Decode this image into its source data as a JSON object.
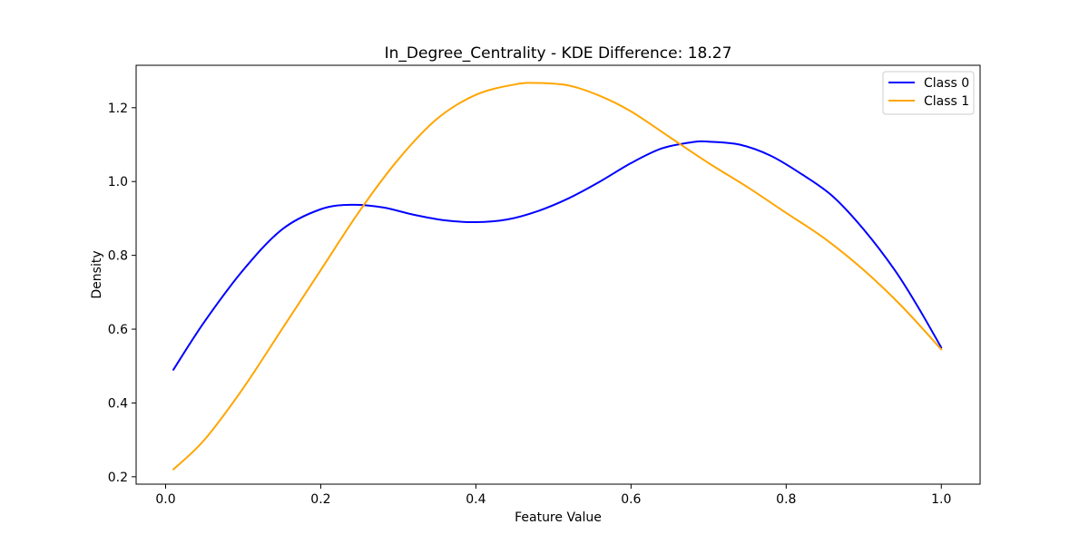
{
  "chart_data": {
    "type": "line",
    "title": "In_Degree_Centrality - KDE Difference: 18.27",
    "xlabel": "Feature Value",
    "ylabel": "Density",
    "xlim": [
      -0.038,
      1.05
    ],
    "ylim": [
      0.18,
      1.315
    ],
    "xticks": [
      0.0,
      0.2,
      0.4,
      0.6,
      0.8,
      1.0
    ],
    "xtick_labels": [
      "0.0",
      "0.2",
      "0.4",
      "0.6",
      "0.8",
      "1.0"
    ],
    "yticks": [
      0.2,
      0.4,
      0.6,
      0.8,
      1.0,
      1.2
    ],
    "ytick_labels": [
      "0.2",
      "0.4",
      "0.6",
      "0.8",
      "1.0",
      "1.2"
    ],
    "grid": false,
    "legend_position": "top-right",
    "series": [
      {
        "name": "Class 0",
        "color": "#0000ff",
        "x": [
          0.01,
          0.05,
          0.1,
          0.15,
          0.2,
          0.24,
          0.28,
          0.32,
          0.36,
          0.4,
          0.44,
          0.48,
          0.52,
          0.56,
          0.6,
          0.64,
          0.68,
          0.7,
          0.74,
          0.78,
          0.82,
          0.86,
          0.9,
          0.94,
          0.97,
          1.0
        ],
        "y": [
          0.49,
          0.62,
          0.76,
          0.87,
          0.925,
          0.937,
          0.93,
          0.91,
          0.895,
          0.89,
          0.897,
          0.92,
          0.955,
          1.0,
          1.05,
          1.09,
          1.107,
          1.108,
          1.1,
          1.07,
          1.02,
          0.96,
          0.87,
          0.76,
          0.66,
          0.55
        ]
      },
      {
        "name": "Class 1",
        "color": "#ffa500",
        "x": [
          0.01,
          0.05,
          0.1,
          0.15,
          0.2,
          0.25,
          0.3,
          0.35,
          0.4,
          0.45,
          0.48,
          0.52,
          0.56,
          0.6,
          0.65,
          0.7,
          0.75,
          0.8,
          0.85,
          0.9,
          0.95,
          1.0
        ],
        "y": [
          0.22,
          0.3,
          0.44,
          0.6,
          0.76,
          0.92,
          1.06,
          1.17,
          1.235,
          1.263,
          1.267,
          1.26,
          1.232,
          1.19,
          1.12,
          1.05,
          0.985,
          0.915,
          0.845,
          0.76,
          0.66,
          0.545
        ]
      }
    ]
  }
}
